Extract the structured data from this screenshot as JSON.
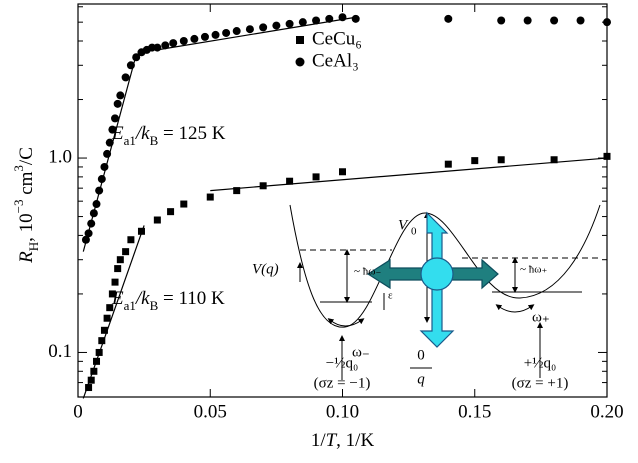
{
  "chart_data": {
    "type": "scatter",
    "x_label": [
      "1/",
      "T",
      ", 1/K"
    ],
    "y_label": [
      "R",
      "H",
      ", 10",
      "−3",
      " cm",
      "3",
      "/C"
    ],
    "xlim": [
      0,
      0.2
    ],
    "ylim": [
      0.059,
      6.2
    ],
    "log_y": true,
    "xticks": [
      0,
      0.05,
      {
        "value": 0.1,
        "label": "0.10"
      },
      0.15,
      {
        "value": 0.2,
        "label": "0.20"
      }
    ],
    "yticks": [
      0.1,
      {
        "value": 1,
        "label": "1.0"
      }
    ],
    "yminor_ticks": [
      0.07,
      0.08,
      0.09,
      0.2,
      0.3,
      0.4,
      0.5,
      0.6,
      0.7,
      0.8,
      0.9,
      2,
      3,
      4,
      5,
      6
    ],
    "legend": "upper center",
    "series": [
      {
        "name": "CeCu₆",
        "marker": "square",
        "color": "#000000",
        "x": [
          0.004,
          0.005,
          0.006,
          0.007,
          0.008,
          0.009,
          0.01,
          0.011,
          0.012,
          0.013,
          0.014,
          0.015,
          0.016,
          0.018,
          0.02,
          0.024,
          0.03,
          0.035,
          0.04,
          0.05,
          0.06,
          0.07,
          0.08,
          0.09,
          0.1,
          0.14,
          0.15,
          0.16,
          0.18,
          0.2
        ],
        "values": [
          0.066,
          0.072,
          0.08,
          0.09,
          0.1,
          0.115,
          0.13,
          0.15,
          0.17,
          0.2,
          0.23,
          0.27,
          0.3,
          0.33,
          0.38,
          0.42,
          0.48,
          0.53,
          0.58,
          0.63,
          0.68,
          0.72,
          0.76,
          0.8,
          0.85,
          0.93,
          0.97,
          0.98,
          0.98,
          1.02
        ]
      },
      {
        "name": "CeAl₃",
        "marker": "circle",
        "color": "#000000",
        "x": [
          0.003,
          0.004,
          0.005,
          0.006,
          0.007,
          0.008,
          0.009,
          0.01,
          0.011,
          0.012,
          0.013,
          0.014,
          0.015,
          0.016,
          0.018,
          0.02,
          0.022,
          0.024,
          0.026,
          0.028,
          0.03,
          0.033,
          0.036,
          0.04,
          0.044,
          0.048,
          0.052,
          0.056,
          0.06,
          0.065,
          0.07,
          0.075,
          0.08,
          0.085,
          0.09,
          0.095,
          0.1,
          0.105,
          0.14,
          0.16,
          0.17,
          0.18,
          0.19,
          0.2
        ],
        "values": [
          0.38,
          0.41,
          0.46,
          0.52,
          0.58,
          0.68,
          0.78,
          0.9,
          1.05,
          1.2,
          1.4,
          1.6,
          1.9,
          2.1,
          2.6,
          3.0,
          3.3,
          3.5,
          3.6,
          3.7,
          3.7,
          3.8,
          3.9,
          4.0,
          4.1,
          4.2,
          4.3,
          4.4,
          4.5,
          4.6,
          4.7,
          4.8,
          4.9,
          5.0,
          5.1,
          5.2,
          5.3,
          5.2,
          5.2,
          5.1,
          5.1,
          5.1,
          5.1,
          5.0
        ]
      }
    ],
    "fits": [
      {
        "x": [
          0.002,
          0.022
        ],
        "values": [
          0.33,
          3.4
        ]
      },
      {
        "x": [
          0.03,
          0.105
        ],
        "values": [
          3.6,
          5.3
        ]
      },
      {
        "x": [
          0.002,
          0.025
        ],
        "values": [
          0.058,
          0.45
        ]
      },
      {
        "x": [
          0.05,
          0.2
        ],
        "values": [
          0.68,
          1.0
        ]
      }
    ],
    "annotations": [
      {
        "parts": [
          "E",
          "a1",
          "/k",
          "B",
          " = 125 K"
        ]
      },
      {
        "parts": [
          "E",
          "a1",
          "/k",
          "B",
          " = 110 K"
        ]
      }
    ]
  },
  "inset": {
    "labels": [
      "V(q)",
      "V",
      "0",
      "~ ħω₋",
      "~ ħω₊",
      "ε",
      "ω₋",
      "ω₊",
      "−½q₀",
      "(σz = −1)",
      "0",
      "q",
      "+½q₀",
      "(σz = +1)"
    ]
  }
}
